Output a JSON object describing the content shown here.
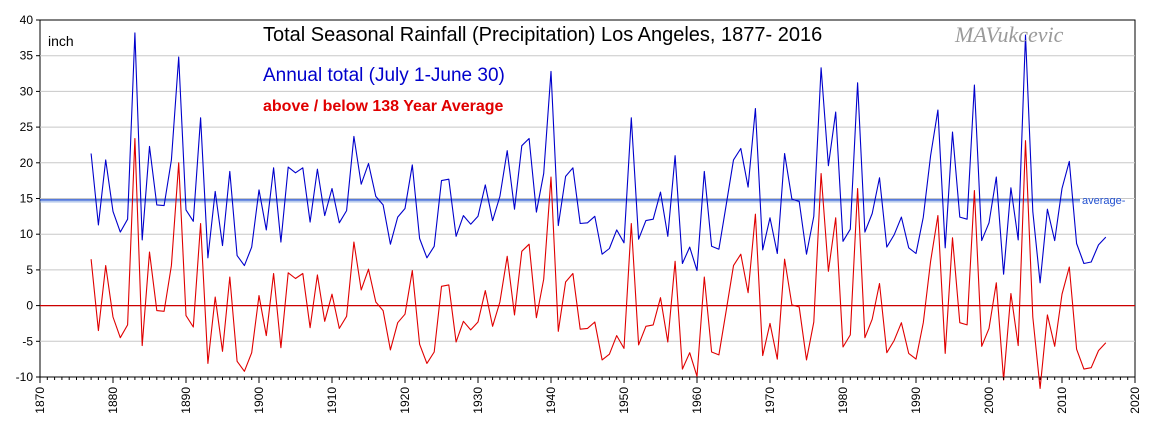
{
  "chart_data": {
    "type": "line",
    "title": "Total Seasonal Rainfall (Precipitation)  Los Angeles, 1877- 2016",
    "unit_label": "inch",
    "watermark": "MAVukcevic",
    "xlim": [
      1870,
      2020
    ],
    "ylim": [
      -10,
      40
    ],
    "x_ticks": [
      1870,
      1880,
      1890,
      1900,
      1910,
      1920,
      1930,
      1940,
      1950,
      1960,
      1970,
      1980,
      1990,
      2000,
      2010,
      2020
    ],
    "y_ticks": [
      -10,
      -5,
      0,
      5,
      10,
      15,
      20,
      25,
      30,
      35,
      40
    ],
    "grid": true,
    "reference_lines": [
      {
        "name": "average",
        "value": 14.8,
        "color": "#1f4fd0"
      },
      {
        "name": "zero",
        "value": 0,
        "color": "#cc0000"
      }
    ],
    "x": [
      1877,
      1878,
      1879,
      1880,
      1881,
      1882,
      1883,
      1884,
      1885,
      1886,
      1887,
      1888,
      1889,
      1890,
      1891,
      1892,
      1893,
      1894,
      1895,
      1896,
      1897,
      1898,
      1899,
      1900,
      1901,
      1902,
      1903,
      1904,
      1905,
      1906,
      1907,
      1908,
      1909,
      1910,
      1911,
      1912,
      1913,
      1914,
      1915,
      1916,
      1917,
      1918,
      1919,
      1920,
      1921,
      1922,
      1923,
      1924,
      1925,
      1926,
      1927,
      1928,
      1929,
      1930,
      1931,
      1932,
      1933,
      1934,
      1935,
      1936,
      1937,
      1938,
      1939,
      1940,
      1941,
      1942,
      1943,
      1944,
      1945,
      1946,
      1947,
      1948,
      1949,
      1950,
      1951,
      1952,
      1953,
      1954,
      1955,
      1956,
      1957,
      1958,
      1959,
      1960,
      1961,
      1962,
      1963,
      1964,
      1965,
      1966,
      1967,
      1968,
      1969,
      1970,
      1971,
      1972,
      1973,
      1974,
      1975,
      1976,
      1977,
      1978,
      1979,
      1980,
      1981,
      1982,
      1983,
      1984,
      1985,
      1986,
      1987,
      1988,
      1989,
      1990,
      1991,
      1992,
      1993,
      1994,
      1995,
      1996,
      1997,
      1998,
      1999,
      2000,
      2001,
      2002,
      2003,
      2004,
      2005,
      2006,
      2007,
      2008,
      2009,
      2010,
      2011,
      2012,
      2013,
      2014,
      2015,
      2016
    ],
    "series": [
      {
        "name": "Annual total (July 1-June 30)",
        "color": "#0000cc",
        "values": [
          21.3,
          11.3,
          20.4,
          13.2,
          10.3,
          12.1,
          38.2,
          9.2,
          22.3,
          14.1,
          14.0,
          20.4,
          34.8,
          13.4,
          11.8,
          26.3,
          6.7,
          16.0,
          8.4,
          18.8,
          7.0,
          5.6,
          8.2,
          16.2,
          10.6,
          19.3,
          8.9,
          19.4,
          18.6,
          19.3,
          11.7,
          19.1,
          12.6,
          16.4,
          11.6,
          13.3,
          23.7,
          17.0,
          19.9,
          15.3,
          14.1,
          8.6,
          12.4,
          13.6,
          19.7,
          9.4,
          6.7,
          8.3,
          17.5,
          17.7,
          9.7,
          12.6,
          11.4,
          12.5,
          16.9,
          11.9,
          15.3,
          21.7,
          13.5,
          22.4,
          23.4,
          13.1,
          18.5,
          32.8,
          11.2,
          18.1,
          19.3,
          11.5,
          11.6,
          12.5,
          7.2,
          8.0,
          10.6,
          8.8,
          26.3,
          9.3,
          11.9,
          12.1,
          15.9,
          9.7,
          21.0,
          5.9,
          8.2,
          4.9,
          18.8,
          8.3,
          7.9,
          14.1,
          20.4,
          22.0,
          16.6,
          27.6,
          7.8,
          12.3,
          7.3,
          21.3,
          14.9,
          14.6,
          7.2,
          12.5,
          33.3,
          19.6,
          27.1,
          9.0,
          10.7,
          31.2,
          10.3,
          12.9,
          17.9,
          8.2,
          9.9,
          12.4,
          8.1,
          7.3,
          12.4,
          21.0,
          27.4,
          8.1,
          24.3,
          12.4,
          12.1,
          30.9,
          9.1,
          11.6,
          18.0,
          4.4,
          16.5,
          9.2,
          37.9,
          13.2,
          3.2,
          13.5,
          9.1,
          16.4,
          20.2,
          8.7,
          5.9,
          6.1,
          8.5,
          9.6
        ]
      },
      {
        "name": "above / below 138 Year Average",
        "color": "#e00000",
        "values": [
          6.5,
          -3.5,
          5.6,
          -1.6,
          -4.5,
          -2.7,
          23.4,
          -5.6,
          7.5,
          -0.7,
          -0.8,
          5.6,
          20.0,
          -1.4,
          -3.0,
          11.5,
          -8.1,
          1.2,
          -6.4,
          4.0,
          -7.8,
          -9.2,
          -6.6,
          1.4,
          -4.2,
          4.5,
          -5.9,
          4.6,
          3.8,
          4.5,
          -3.1,
          4.3,
          -2.2,
          1.6,
          -3.2,
          -1.5,
          8.9,
          2.2,
          5.1,
          0.5,
          -0.7,
          -6.2,
          -2.4,
          -1.2,
          4.9,
          -5.4,
          -8.1,
          -6.5,
          2.7,
          2.9,
          -5.1,
          -2.2,
          -3.4,
          -2.3,
          2.1,
          -2.9,
          0.5,
          6.9,
          -1.3,
          7.6,
          8.6,
          -1.7,
          3.7,
          18.0,
          -3.6,
          3.3,
          4.5,
          -3.3,
          -3.2,
          -2.3,
          -7.6,
          -6.8,
          -4.2,
          -6.0,
          11.5,
          -5.5,
          -2.9,
          -2.7,
          1.1,
          -5.1,
          6.2,
          -8.9,
          -6.6,
          -9.9,
          4.0,
          -6.5,
          -6.9,
          -0.7,
          5.6,
          7.2,
          1.8,
          12.8,
          -7.0,
          -2.5,
          -7.5,
          6.5,
          0.1,
          -0.2,
          -7.6,
          -2.3,
          18.5,
          4.8,
          12.3,
          -5.8,
          -4.1,
          16.4,
          -4.5,
          -1.9,
          3.1,
          -6.6,
          -4.9,
          -2.4,
          -6.7,
          -7.5,
          -2.4,
          6.2,
          12.6,
          -6.7,
          9.5,
          -2.4,
          -2.7,
          16.1,
          -5.7,
          -3.2,
          3.2,
          -10.4,
          1.7,
          -5.6,
          23.1,
          -1.6,
          -11.6,
          -1.3,
          -5.7,
          1.6,
          5.4,
          -6.1,
          -8.9,
          -8.7,
          -6.3,
          -5.2
        ]
      }
    ]
  }
}
